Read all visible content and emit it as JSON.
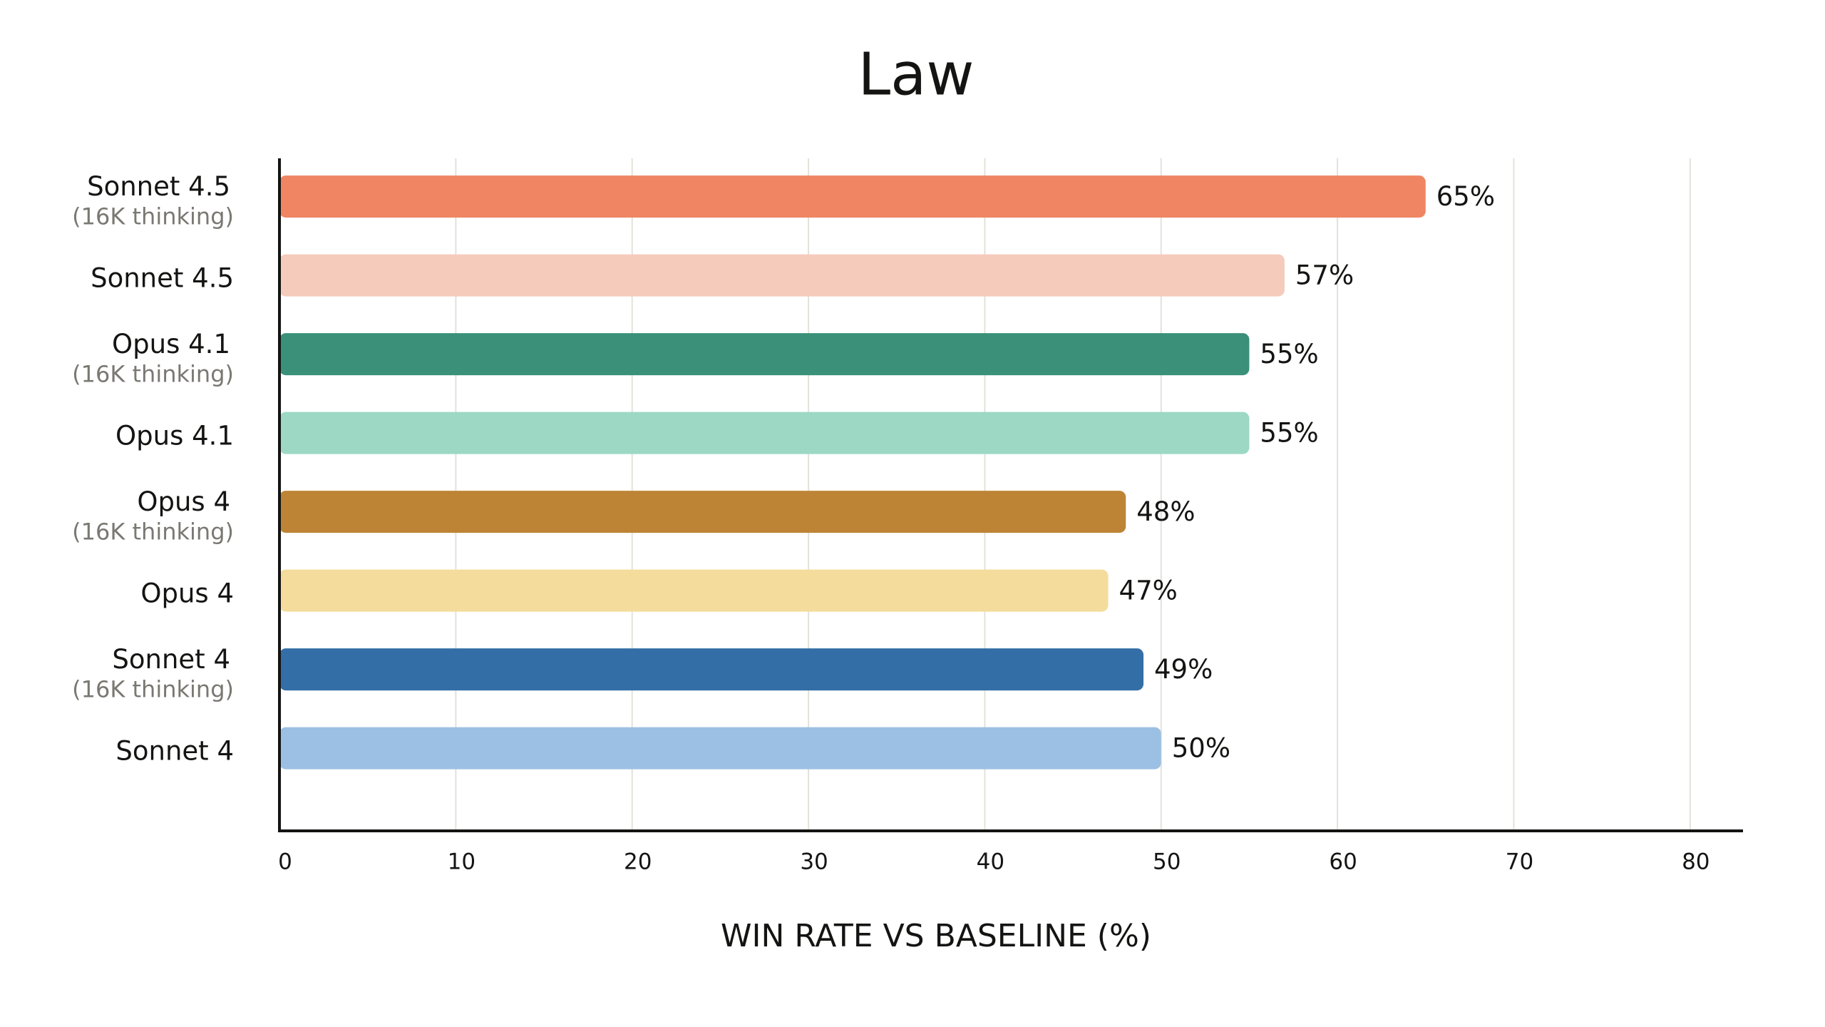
{
  "chart_data": {
    "type": "hbar",
    "title": "Law",
    "x_label": "WIN RATE VS BASELINE (%)",
    "categories": [
      "Sonnet 4.5",
      "Sonnet 4.5",
      "Opus 4.1",
      "Opus 4.1",
      "Opus 4",
      "Opus 4",
      "Sonnet 4",
      "Sonnet 4"
    ],
    "sublabels": [
      "(16K thinking)",
      null,
      "(16K thinking)",
      null,
      "(16K thinking)",
      null,
      "(16K thinking)",
      null
    ],
    "values": [
      65,
      57,
      55,
      55,
      48,
      47,
      49,
      50
    ],
    "value_labels": [
      "65%",
      "57%",
      "55%",
      "55%",
      "48%",
      "47%",
      "49%",
      "50%"
    ],
    "colors": [
      "#ef8563",
      "#f5cbbb",
      "#3a9078",
      "#9dd8c4",
      "#bd8436",
      "#f4dc9c",
      "#336ea6",
      "#9cc0e4"
    ],
    "xlim": [
      0,
      83
    ],
    "xticks": [
      0,
      10,
      20,
      30,
      40,
      50,
      60,
      70,
      80
    ],
    "grid": true
  }
}
